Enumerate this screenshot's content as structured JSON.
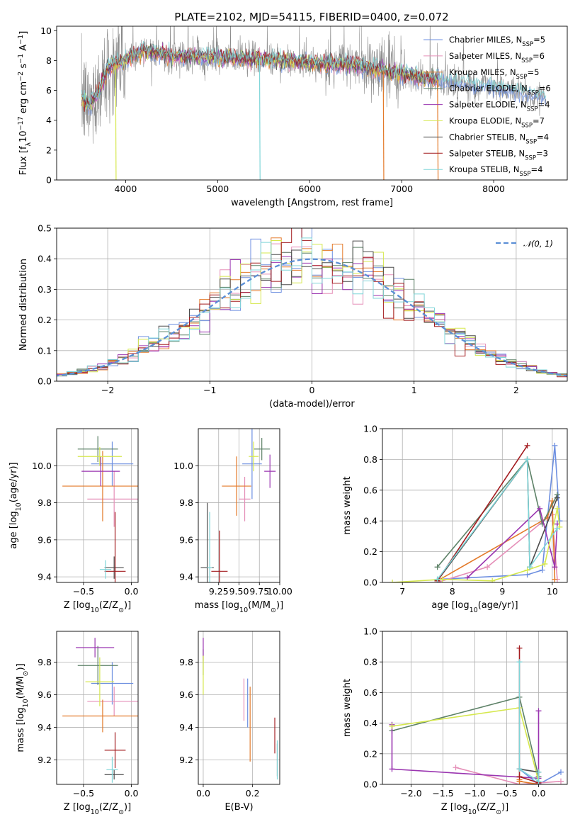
{
  "title": "PLATE=2102, MJD=54115, FIBERID=0400, z=0.072",
  "colors": [
    "#6d8fe0",
    "#e58fb8",
    "#e37a2a",
    "#5e8268",
    "#9a35b0",
    "#d6e84e",
    "#4c4c4c",
    "#a31b1f",
    "#7fd5d8"
  ],
  "legend": [
    {
      "label": "Chabrier MILES, N",
      "sub": "SSP",
      "tail": "=5"
    },
    {
      "label": "Salpeter MILES, N",
      "sub": "SSP",
      "tail": "=6"
    },
    {
      "label": "Kroupa MILES, N",
      "sub": "SSP",
      "tail": "=5"
    },
    {
      "label": "Chabrier ELODIE, N",
      "sub": "SSP",
      "tail": "=6"
    },
    {
      "label": "Salpeter ELODIE, N",
      "sub": "SSP",
      "tail": "=4"
    },
    {
      "label": "Kroupa ELODIE, N",
      "sub": "SSP",
      "tail": "=7"
    },
    {
      "label": "Chabrier STELIB, N",
      "sub": "SSP",
      "tail": "=4"
    },
    {
      "label": "Salpeter STELIB, N",
      "sub": "SSP",
      "tail": "=3"
    },
    {
      "label": "Kroupa STELIB, N",
      "sub": "SSP",
      "tail": "=4"
    }
  ],
  "chart_data": [
    {
      "type": "line",
      "panel": "spectrum",
      "xlabel": "wavelength [Angstrom, rest frame]",
      "ylabel": {
        "pre": "Flux [f",
        "sub": "λ",
        "mid": "10",
        "sup1": "−17",
        "post": " erg cm",
        "sup2": "−2",
        "post2": " s",
        "sup3": "−1",
        "post3": " A",
        "sup4": "−1",
        "end": "]"
      },
      "xlim": [
        3250,
        8800
      ],
      "ylim": [
        0,
        10.3
      ],
      "xticks": [
        4000,
        5000,
        6000,
        7000,
        8000
      ],
      "yticks": [
        0,
        2,
        4,
        6,
        8,
        10
      ],
      "data_range": [
        3520,
        8570
      ],
      "continuum": [
        [
          3520,
          5.4
        ],
        [
          3600,
          5.0
        ],
        [
          3700,
          5.8
        ],
        [
          3800,
          7.4
        ],
        [
          3900,
          7.8
        ],
        [
          4000,
          8.0
        ],
        [
          4200,
          8.7
        ],
        [
          4500,
          8.3
        ],
        [
          5000,
          8.2
        ],
        [
          5500,
          8.1
        ],
        [
          6000,
          7.8
        ],
        [
          6500,
          7.7
        ],
        [
          7000,
          7.1
        ],
        [
          7500,
          6.6
        ],
        [
          8000,
          6.3
        ],
        [
          8300,
          5.9
        ],
        [
          8570,
          5.5
        ]
      ]
    },
    {
      "type": "line",
      "panel": "residuals",
      "xlabel": "(data-model)/error",
      "ylabel": "Normed distribution",
      "legend_label": "𝒩(0, 1)",
      "xlim": [
        -2.5,
        2.5
      ],
      "ylim": [
        0,
        0.5
      ],
      "xticks": [
        -2,
        -1,
        0,
        1,
        2
      ],
      "yticks": [
        0.0,
        0.1,
        0.2,
        0.3,
        0.4,
        0.5
      ],
      "bin_width": 0.1,
      "bin_range": [
        -2.6,
        2.6
      ]
    },
    {
      "type": "scatter",
      "panel": "age-vs-Z",
      "xlabel": {
        "pre": "Z [log",
        "sub": "10",
        "mid": "(Z/Z",
        "sub2": "⊙",
        "end": ")]"
      },
      "ylabel": {
        "pre": "age  [log",
        "sub": "10",
        "end": "(age/yr)]"
      },
      "xlim": [
        -0.78,
        0.07
      ],
      "ylim": [
        9.37,
        10.2
      ],
      "xticks": [
        -0.5,
        0.0
      ],
      "xticklabels": [
        "−0.5",
        "0.0"
      ],
      "yticks": [
        9.4,
        9.6,
        9.8,
        10.0
      ],
      "points": [
        {
          "x": -0.2,
          "y": 10.01,
          "xerr": 0.22,
          "yerr": 0.12
        },
        {
          "x": -0.18,
          "y": 9.82,
          "xerr": 0.28,
          "yerr": 0.15
        },
        {
          "x": -0.3,
          "y": 9.89,
          "xerr": 0.42,
          "yerr": 0.19
        },
        {
          "x": -0.35,
          "y": 10.09,
          "xerr": 0.21,
          "yerr": 0.07
        },
        {
          "x": -0.32,
          "y": 9.97,
          "xerr": 0.2,
          "yerr": 0.08
        },
        {
          "x": -0.33,
          "y": 10.05,
          "xerr": 0.23,
          "yerr": 0.05
        },
        {
          "x": -0.18,
          "y": 9.45,
          "xerr": 0.1,
          "yerr": 0.06
        },
        {
          "x": -0.17,
          "y": 9.43,
          "xerr": 0.11,
          "yerr": 0.32
        },
        {
          "x": -0.27,
          "y": 9.44,
          "xerr": 0.06,
          "yerr": 0.05
        }
      ]
    },
    {
      "type": "scatter",
      "panel": "age-vs-mass",
      "xlabel": {
        "pre": "mass [log",
        "sub": "10",
        "mid": "(M/M",
        "sub2": "⊙",
        "end": ")]"
      },
      "ylabel": "",
      "xlim": [
        9.0,
        10.0
      ],
      "ylim": [
        9.37,
        10.2
      ],
      "xticks": [
        9.25,
        9.5,
        9.75,
        10.0
      ],
      "xticklabels": [
        "9.25",
        "9.50",
        "9.75",
        "10.00"
      ],
      "yticks": [
        9.4,
        9.6,
        9.8,
        10.0
      ],
      "points": [
        {
          "x": 9.66,
          "y": 10.01,
          "xerr": 0.12,
          "yerr": 0.19
        },
        {
          "x": 9.57,
          "y": 9.82,
          "xerr": 0.07,
          "yerr": 0.12
        },
        {
          "x": 9.47,
          "y": 9.89,
          "xerr": 0.18,
          "yerr": 0.16
        },
        {
          "x": 9.78,
          "y": 10.09,
          "xerr": 0.1,
          "yerr": 0.06
        },
        {
          "x": 9.88,
          "y": 9.97,
          "xerr": 0.07,
          "yerr": 0.09
        },
        {
          "x": 9.68,
          "y": 10.05,
          "xerr": 0.06,
          "yerr": 0.08
        },
        {
          "x": 9.11,
          "y": 9.45,
          "xerr": 0.08,
          "yerr": 0.35
        },
        {
          "x": 9.26,
          "y": 9.43,
          "xerr": 0.1,
          "yerr": 0.22
        },
        {
          "x": 9.14,
          "y": 9.45,
          "xerr": 0.03,
          "yerr": 0.3
        }
      ]
    },
    {
      "type": "line",
      "panel": "weight-vs-age",
      "xlabel": {
        "pre": "age  [log",
        "sub": "10",
        "end": "(age/yr)]"
      },
      "ylabel": "mass weight",
      "xlim": [
        6.6,
        10.3
      ],
      "ylim": [
        0,
        1.0
      ],
      "xticks": [
        7,
        8,
        9,
        10
      ],
      "yticks": [
        0.0,
        0.2,
        0.4,
        0.6,
        0.8,
        1.0
      ],
      "series": [
        {
          "x": [
            7.7,
            9.5,
            9.8,
            10.05,
            10.15
          ],
          "y": [
            0.02,
            0.05,
            0.08,
            0.89,
            0.4
          ]
        },
        {
          "x": [
            7.7,
            8.7,
            9.9,
            10.0,
            10.1
          ],
          "y": [
            0.0,
            0.1,
            0.42,
            0.44,
            0.02
          ]
        },
        {
          "x": [
            7.7,
            9.9,
            10.0,
            10.05
          ],
          "y": [
            0.01,
            0.42,
            0.53,
            0.02
          ]
        },
        {
          "x": [
            7.7,
            9.5,
            9.8,
            10.1
          ],
          "y": [
            0.1,
            0.8,
            0.38,
            0.57
          ]
        },
        {
          "x": [
            8.3,
            9.75,
            10.05,
            10.1
          ],
          "y": [
            0.03,
            0.48,
            0.1,
            0.38
          ]
        },
        {
          "x": [
            6.8,
            7.8,
            8.8,
            9.5,
            9.85,
            10.1,
            10.15
          ],
          "y": [
            0.0,
            0.02,
            0.01,
            0.08,
            0.12,
            0.48,
            0.36
          ]
        },
        {
          "x": [
            7.7,
            9.5,
            9.55,
            10.1
          ],
          "y": [
            0.01,
            0.8,
            0.1,
            0.55
          ]
        },
        {
          "x": [
            7.7,
            9.5
          ],
          "y": [
            0.01,
            0.89
          ]
        },
        {
          "x": [
            7.7,
            9.5,
            9.55,
            10.1
          ],
          "y": [
            0.02,
            0.8,
            0.1,
            0.35
          ]
        }
      ]
    },
    {
      "type": "scatter",
      "panel": "mass-vs-Z",
      "xlabel": {
        "pre": "Z [log",
        "sub": "10",
        "mid": "(Z/Z",
        "sub2": "⊙",
        "end": ")]"
      },
      "ylabel": {
        "pre": "mass [log",
        "sub": "10",
        "mid": "(M/M",
        "sub2": "⊙",
        "end": ")]"
      },
      "xlim": [
        -0.78,
        0.07
      ],
      "ylim": [
        9.05,
        9.99
      ],
      "xticks": [
        -0.5,
        0.0
      ],
      "xticklabels": [
        "−0.5",
        "0.0"
      ],
      "yticks": [
        9.2,
        9.4,
        9.6,
        9.8
      ],
      "points": [
        {
          "x": -0.2,
          "y": 9.67,
          "xerr": 0.22,
          "yerr": 0.13
        },
        {
          "x": -0.18,
          "y": 9.56,
          "xerr": 0.28,
          "yerr": 0.09
        },
        {
          "x": -0.3,
          "y": 9.47,
          "xerr": 0.42,
          "yerr": 0.1
        },
        {
          "x": -0.35,
          "y": 9.78,
          "xerr": 0.21,
          "yerr": 0.12
        },
        {
          "x": -0.38,
          "y": 9.89,
          "xerr": 0.2,
          "yerr": 0.06
        },
        {
          "x": -0.33,
          "y": 9.68,
          "xerr": 0.15,
          "yerr": 0.15
        },
        {
          "x": -0.18,
          "y": 9.11,
          "xerr": 0.1,
          "yerr": 0.03
        },
        {
          "x": -0.17,
          "y": 9.26,
          "xerr": 0.11,
          "yerr": 0.11
        },
        {
          "x": -0.2,
          "y": 9.14,
          "xerr": 0.06,
          "yerr": 0.08
        }
      ]
    },
    {
      "type": "scatter",
      "panel": "mass-vs-EBV",
      "xlabel": "E(B-V)",
      "ylabel": "",
      "xlim": [
        -0.02,
        0.31
      ],
      "ylim": [
        9.05,
        9.99
      ],
      "xticks": [
        0.0,
        0.2
      ],
      "xticklabels": [
        "0.0",
        "0.2"
      ],
      "yticks": [
        9.2,
        9.4,
        9.6,
        9.8
      ],
      "points": [
        {
          "x": 0.18,
          "y": 9.55,
          "xerr": 0,
          "yerr": 0.15
        },
        {
          "x": 0.165,
          "y": 9.57,
          "xerr": 0,
          "yerr": 0.13
        },
        {
          "x": 0.19,
          "y": 9.42,
          "xerr": 0,
          "yerr": 0.23
        },
        {
          "x": 0.0,
          "y": 9.8,
          "xerr": 0,
          "yerr": 0.08
        },
        {
          "x": 0.0,
          "y": 9.88,
          "xerr": 0,
          "yerr": 0.07
        },
        {
          "x": 0.0,
          "y": 9.72,
          "xerr": 0,
          "yerr": 0.12
        },
        {
          "x": 0.3,
          "y": 9.2,
          "xerr": 0,
          "yerr": 0.1
        },
        {
          "x": 0.29,
          "y": 9.35,
          "xerr": 0,
          "yerr": 0.11
        },
        {
          "x": 0.3,
          "y": 9.2,
          "xerr": 0,
          "yerr": 0.12
        }
      ]
    },
    {
      "type": "line",
      "panel": "weight-vs-Z",
      "xlabel": {
        "pre": "Z [log",
        "sub": "10",
        "mid": "(Z/Z",
        "sub2": "⊙",
        "end": ")]"
      },
      "ylabel": "mass weight",
      "xlim": [
        -2.45,
        0.45
      ],
      "ylim": [
        0,
        1.0
      ],
      "xticks": [
        -2.0,
        -1.5,
        -1.0,
        -0.5,
        0.0
      ],
      "xticklabels": [
        "−2.0",
        "−1.5",
        "−1.0",
        "−0.5",
        "0.0"
      ],
      "yticks": [
        0.0,
        0.2,
        0.4,
        0.6,
        0.8,
        1.0
      ],
      "series": [
        {
          "x": [
            -0.3,
            0.0,
            0.35
          ],
          "y": [
            0.1,
            0.0,
            0.08
          ]
        },
        {
          "x": [
            -1.3,
            -0.3,
            0.35
          ],
          "y": [
            0.11,
            0.0,
            0.02
          ]
        },
        {
          "x": [
            -0.3,
            -0.3,
            0.0
          ],
          "y": [
            0.03,
            0.02,
            0.0
          ]
        },
        {
          "x": [
            -2.3,
            -0.3,
            0.0
          ],
          "y": [
            0.35,
            0.57,
            0.05
          ]
        },
        {
          "x": [
            -2.3,
            -2.3,
            0.0,
            0.0,
            0.0
          ],
          "y": [
            0.39,
            0.1,
            0.04,
            0.48,
            0.0
          ]
        },
        {
          "x": [
            -2.3,
            -0.3,
            0.0
          ],
          "y": [
            0.38,
            0.5,
            0.02
          ]
        },
        {
          "x": [
            -0.3,
            0.0
          ],
          "y": [
            0.1,
            0.08
          ]
        },
        {
          "x": [
            -0.3,
            -0.3,
            0.0
          ],
          "y": [
            0.89,
            0.05,
            0.01
          ]
        },
        {
          "x": [
            -0.3,
            -0.3,
            0.0,
            0.0
          ],
          "y": [
            0.8,
            0.1,
            0.02,
            0.08
          ]
        }
      ]
    }
  ]
}
